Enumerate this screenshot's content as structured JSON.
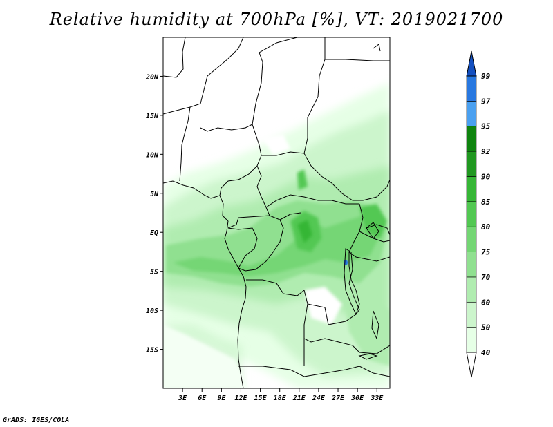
{
  "title": "Relative humidity at 700hPa [%], VT: 2019021700",
  "credit": "GrADS: IGES/COLA",
  "map": {
    "lon_range": [
      0,
      35
    ],
    "lat_range": [
      -20,
      25
    ],
    "lat_ticks": [
      {
        "value": 20,
        "label": "20N"
      },
      {
        "value": 15,
        "label": "15N"
      },
      {
        "value": 10,
        "label": "10N"
      },
      {
        "value": 5,
        "label": "5N"
      },
      {
        "value": 0,
        "label": "EQ"
      },
      {
        "value": -5,
        "label": "5S"
      },
      {
        "value": -10,
        "label": "10S"
      },
      {
        "value": -15,
        "label": "15S"
      }
    ],
    "lon_ticks": [
      {
        "value": 3,
        "label": "3E"
      },
      {
        "value": 6,
        "label": "6E"
      },
      {
        "value": 9,
        "label": "9E"
      },
      {
        "value": 12,
        "label": "12E"
      },
      {
        "value": 15,
        "label": "15E"
      },
      {
        "value": 18,
        "label": "18E"
      },
      {
        "value": 21,
        "label": "21E"
      },
      {
        "value": 24,
        "label": "24E"
      },
      {
        "value": 27,
        "label": "27E"
      },
      {
        "value": 30,
        "label": "30E"
      },
      {
        "value": 33,
        "label": "33E"
      }
    ]
  },
  "colorbar": {
    "levels": [
      "40",
      "50",
      "60",
      "70",
      "75",
      "80",
      "85",
      "90",
      "92",
      "95",
      "97",
      "99"
    ],
    "colors": [
      "#ffffff",
      "#e6ffe6",
      "#ccf5cc",
      "#b0ecb0",
      "#90e090",
      "#74d674",
      "#52c852",
      "#36b636",
      "#209820",
      "#0f840f",
      "#4aa0f0",
      "#2878e0",
      "#1450c0"
    ]
  }
}
